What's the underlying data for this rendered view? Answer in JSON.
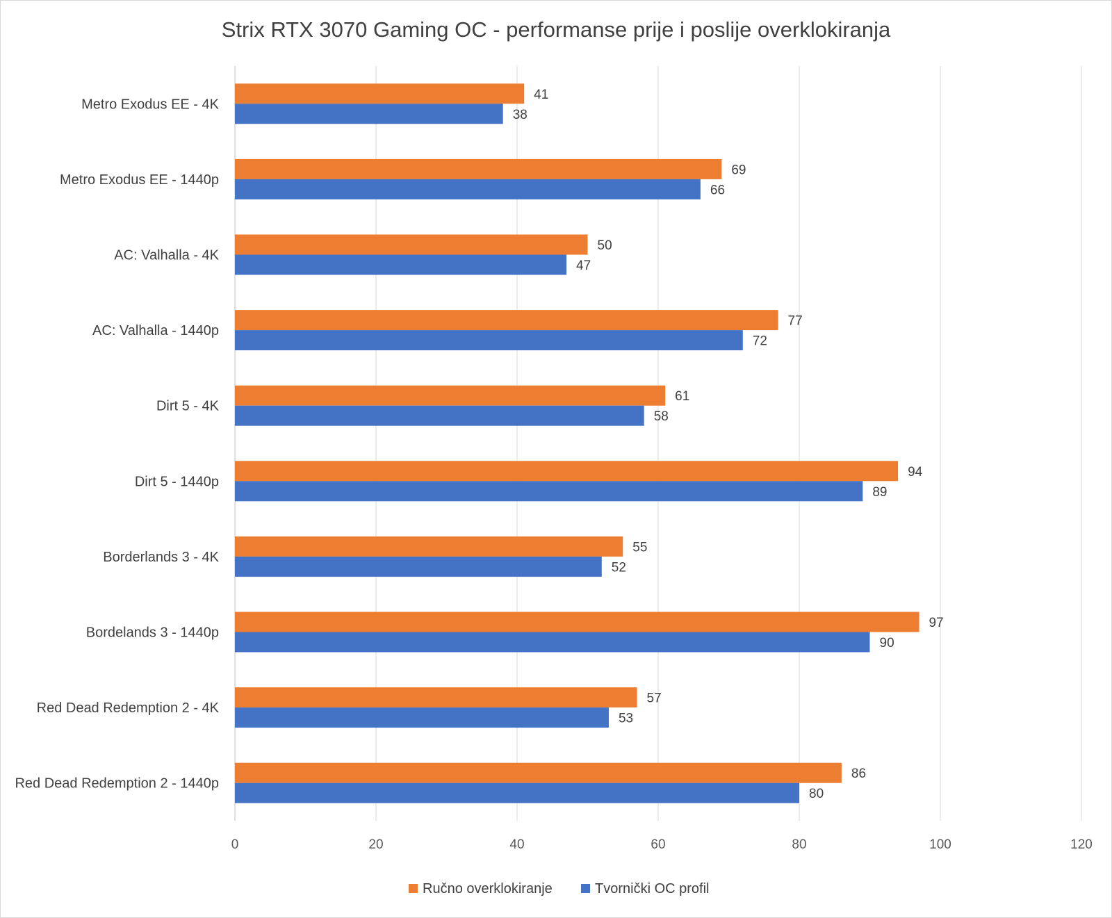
{
  "chart_data": {
    "type": "bar",
    "orientation": "horizontal",
    "title": "Strix RTX 3070 Gaming OC - performanse prije i poslije overklokiranja",
    "categories": [
      "Metro Exodus EE - 4K",
      "Metro Exodus EE - 1440p",
      "AC: Valhalla - 4K",
      "AC: Valhalla - 1440p",
      "Dirt 5 - 4K",
      "Dirt 5 - 1440p",
      "Borderlands 3 - 4K",
      "Bordelands 3 - 1440p",
      "Red Dead Redemption 2 - 4K",
      "Red Dead Redemption 2 - 1440p"
    ],
    "series": [
      {
        "name": "Ručno overklokiranje",
        "color": "#ED7D31",
        "values": [
          41,
          69,
          50,
          77,
          61,
          94,
          55,
          97,
          57,
          86
        ]
      },
      {
        "name": "Tvornički OC profil",
        "color": "#4472C4",
        "values": [
          38,
          66,
          47,
          72,
          58,
          89,
          52,
          90,
          53,
          80
        ]
      }
    ],
    "xlim": [
      0,
      120
    ],
    "xticks": [
      "0",
      "20",
      "40",
      "60",
      "80",
      "100",
      "120"
    ],
    "xlabel": "",
    "ylabel": "",
    "grid": true,
    "gridline_color": "#d9d9d9",
    "data_labels": true,
    "legend_position": "bottom"
  }
}
